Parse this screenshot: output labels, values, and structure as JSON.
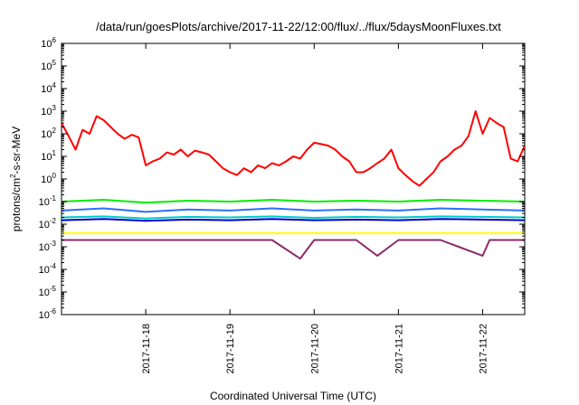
{
  "chart_data": {
    "type": "line",
    "title": "/data/run/goesPlots/archive/2017-11-22/12:00/flux/../flux/5daysMoonFluxes.txt",
    "xlabel": "Coordinated Universal Time (UTC)",
    "ylabel": {
      "base": "protons/cm",
      "sup": "2",
      "rest": "-s-sr-MeV"
    },
    "yscale": "log",
    "ylim": [
      1e-06,
      1000000.0
    ],
    "xlim": [
      "2017-11-17T00:00",
      "2017-11-22T12:00"
    ],
    "y_ticks": [
      {
        "base": "10",
        "exp": "-6",
        "value": 1e-06
      },
      {
        "base": "10",
        "exp": "-5",
        "value": 1e-05
      },
      {
        "base": "10",
        "exp": "-4",
        "value": 0.0001
      },
      {
        "base": "10",
        "exp": "-3",
        "value": 0.001
      },
      {
        "base": "10",
        "exp": "-2",
        "value": 0.01
      },
      {
        "base": "10",
        "exp": "-1",
        "value": 0.1
      },
      {
        "base": "10",
        "exp": "0",
        "value": 1
      },
      {
        "base": "10",
        "exp": "1",
        "value": 10
      },
      {
        "base": "10",
        "exp": "2",
        "value": 100
      },
      {
        "base": "10",
        "exp": "3",
        "value": 1000
      },
      {
        "base": "10",
        "exp": "4",
        "value": 10000
      },
      {
        "base": "10",
        "exp": "5",
        "value": 100000
      },
      {
        "base": "10",
        "exp": "6",
        "value": 1000000
      }
    ],
    "x_ticks": [
      "2017-11-18",
      "2017-11-19",
      "2017-11-20",
      "2017-11-21",
      "2017-11-22"
    ],
    "grid": false,
    "legend": "none",
    "series": [
      {
        "color": "#ff0000",
        "points": [
          [
            "2017-11-17T00:00",
            300
          ],
          [
            "2017-11-17T02:00",
            80
          ],
          [
            "2017-11-17T04:00",
            20
          ],
          [
            "2017-11-17T06:00",
            150
          ],
          [
            "2017-11-17T08:00",
            100
          ],
          [
            "2017-11-17T10:00",
            600
          ],
          [
            "2017-11-17T12:00",
            400
          ],
          [
            "2017-11-17T14:00",
            200
          ],
          [
            "2017-11-17T16:00",
            100
          ],
          [
            "2017-11-17T18:00",
            60
          ],
          [
            "2017-11-17T20:00",
            90
          ],
          [
            "2017-11-17T22:00",
            70
          ],
          [
            "2017-11-18T00:00",
            4
          ],
          [
            "2017-11-18T02:00",
            6
          ],
          [
            "2017-11-18T04:00",
            8
          ],
          [
            "2017-11-18T06:00",
            15
          ],
          [
            "2017-11-18T08:00",
            12
          ],
          [
            "2017-11-18T10:00",
            20
          ],
          [
            "2017-11-18T12:00",
            10
          ],
          [
            "2017-11-18T14:00",
            18
          ],
          [
            "2017-11-18T16:00",
            15
          ],
          [
            "2017-11-18T18:00",
            12
          ],
          [
            "2017-11-18T20:00",
            6
          ],
          [
            "2017-11-18T22:00",
            3
          ],
          [
            "2017-11-19T00:00",
            2
          ],
          [
            "2017-11-19T02:00",
            1.5
          ],
          [
            "2017-11-19T04:00",
            3
          ],
          [
            "2017-11-19T06:00",
            2
          ],
          [
            "2017-11-19T08:00",
            4
          ],
          [
            "2017-11-19T10:00",
            3
          ],
          [
            "2017-11-19T12:00",
            5
          ],
          [
            "2017-11-19T14:00",
            4
          ],
          [
            "2017-11-19T16:00",
            6
          ],
          [
            "2017-11-19T18:00",
            10
          ],
          [
            "2017-11-19T20:00",
            8
          ],
          [
            "2017-11-19T22:00",
            20
          ],
          [
            "2017-11-20T00:00",
            40
          ],
          [
            "2017-11-20T02:00",
            35
          ],
          [
            "2017-11-20T04:00",
            30
          ],
          [
            "2017-11-20T06:00",
            20
          ],
          [
            "2017-11-20T08:00",
            10
          ],
          [
            "2017-11-20T10:00",
            6
          ],
          [
            "2017-11-20T12:00",
            2
          ],
          [
            "2017-11-20T14:00",
            2
          ],
          [
            "2017-11-20T16:00",
            3
          ],
          [
            "2017-11-20T18:00",
            5
          ],
          [
            "2017-11-20T20:00",
            8
          ],
          [
            "2017-11-20T22:00",
            20
          ],
          [
            "2017-11-21T00:00",
            3
          ],
          [
            "2017-11-21T02:00",
            1.5
          ],
          [
            "2017-11-21T04:00",
            0.8
          ],
          [
            "2017-11-21T06:00",
            0.5
          ],
          [
            "2017-11-21T08:00",
            1
          ],
          [
            "2017-11-21T10:00",
            2
          ],
          [
            "2017-11-21T12:00",
            6
          ],
          [
            "2017-11-21T14:00",
            10
          ],
          [
            "2017-11-21T16:00",
            20
          ],
          [
            "2017-11-21T18:00",
            30
          ],
          [
            "2017-11-21T20:00",
            80
          ],
          [
            "2017-11-21T22:00",
            1000
          ],
          [
            "2017-11-22T00:00",
            100
          ],
          [
            "2017-11-22T02:00",
            500
          ],
          [
            "2017-11-22T04:00",
            300
          ],
          [
            "2017-11-22T06:00",
            200
          ],
          [
            "2017-11-22T08:00",
            8
          ],
          [
            "2017-11-22T10:00",
            6
          ],
          [
            "2017-11-22T12:00",
            30
          ]
        ]
      },
      {
        "color": "#00ee00",
        "points": [
          [
            "2017-11-17T00:00",
            0.1
          ],
          [
            "2017-11-17T12:00",
            0.12
          ],
          [
            "2017-11-18T00:00",
            0.09
          ],
          [
            "2017-11-18T12:00",
            0.11
          ],
          [
            "2017-11-19T00:00",
            0.1
          ],
          [
            "2017-11-19T12:00",
            0.12
          ],
          [
            "2017-11-20T00:00",
            0.1
          ],
          [
            "2017-11-20T12:00",
            0.11
          ],
          [
            "2017-11-21T00:00",
            0.1
          ],
          [
            "2017-11-21T12:00",
            0.12
          ],
          [
            "2017-11-22T00:00",
            0.11
          ],
          [
            "2017-11-22T12:00",
            0.1
          ]
        ]
      },
      {
        "color": "#2b6fff",
        "points": [
          [
            "2017-11-17T00:00",
            0.04
          ],
          [
            "2017-11-17T12:00",
            0.05
          ],
          [
            "2017-11-18T00:00",
            0.035
          ],
          [
            "2017-11-18T12:00",
            0.045
          ],
          [
            "2017-11-19T00:00",
            0.04
          ],
          [
            "2017-11-19T12:00",
            0.05
          ],
          [
            "2017-11-20T00:00",
            0.04
          ],
          [
            "2017-11-20T12:00",
            0.045
          ],
          [
            "2017-11-21T00:00",
            0.04
          ],
          [
            "2017-11-21T12:00",
            0.05
          ],
          [
            "2017-11-22T00:00",
            0.045
          ],
          [
            "2017-11-22T12:00",
            0.04
          ]
        ]
      },
      {
        "color": "#00cccc",
        "points": [
          [
            "2017-11-17T00:00",
            0.02
          ],
          [
            "2017-11-17T12:00",
            0.022
          ],
          [
            "2017-11-18T00:00",
            0.018
          ],
          [
            "2017-11-18T12:00",
            0.021
          ],
          [
            "2017-11-19T00:00",
            0.02
          ],
          [
            "2017-11-19T12:00",
            0.022
          ],
          [
            "2017-11-20T00:00",
            0.019
          ],
          [
            "2017-11-20T12:00",
            0.021
          ],
          [
            "2017-11-21T00:00",
            0.02
          ],
          [
            "2017-11-21T12:00",
            0.022
          ],
          [
            "2017-11-22T00:00",
            0.021
          ],
          [
            "2017-11-22T12:00",
            0.02
          ]
        ]
      },
      {
        "color": "#0000cc",
        "points": [
          [
            "2017-11-17T00:00",
            0.015
          ],
          [
            "2017-11-17T12:00",
            0.017
          ],
          [
            "2017-11-18T00:00",
            0.014
          ],
          [
            "2017-11-18T12:00",
            0.016
          ],
          [
            "2017-11-19T00:00",
            0.015
          ],
          [
            "2017-11-19T12:00",
            0.017
          ],
          [
            "2017-11-20T00:00",
            0.015
          ],
          [
            "2017-11-20T12:00",
            0.016
          ],
          [
            "2017-11-21T00:00",
            0.015
          ],
          [
            "2017-11-21T12:00",
            0.017
          ],
          [
            "2017-11-22T00:00",
            0.016
          ],
          [
            "2017-11-22T12:00",
            0.015
          ]
        ]
      },
      {
        "color": "#ffff00",
        "points": [
          [
            "2017-11-17T00:00",
            0.004
          ],
          [
            "2017-11-17T12:00",
            0.004
          ],
          [
            "2017-11-18T00:00",
            0.004
          ],
          [
            "2017-11-18T12:00",
            0.004
          ],
          [
            "2017-11-19T00:00",
            0.004
          ],
          [
            "2017-11-19T12:00",
            0.004
          ],
          [
            "2017-11-20T00:00",
            0.004
          ],
          [
            "2017-11-20T12:00",
            0.004
          ],
          [
            "2017-11-21T00:00",
            0.004
          ],
          [
            "2017-11-21T12:00",
            0.004
          ],
          [
            "2017-11-22T00:00",
            0.004
          ],
          [
            "2017-11-22T12:00",
            0.004
          ]
        ]
      },
      {
        "color": "#8b2a6b",
        "points": [
          [
            "2017-11-17T00:00",
            0.002
          ],
          [
            "2017-11-17T12:00",
            0.002
          ],
          [
            "2017-11-18T00:00",
            0.002
          ],
          [
            "2017-11-18T12:00",
            0.002
          ],
          [
            "2017-11-19T00:00",
            0.002
          ],
          [
            "2017-11-19T12:00",
            0.002
          ],
          [
            "2017-11-19T20:00",
            0.0003
          ],
          [
            "2017-11-20T00:00",
            0.002
          ],
          [
            "2017-11-20T12:00",
            0.002
          ],
          [
            "2017-11-20T18:00",
            0.0004
          ],
          [
            "2017-11-21T00:00",
            0.002
          ],
          [
            "2017-11-21T12:00",
            0.002
          ],
          [
            "2017-11-22T00:00",
            0.0004
          ],
          [
            "2017-11-22T02:00",
            0.002
          ],
          [
            "2017-11-22T12:00",
            0.002
          ]
        ]
      }
    ]
  }
}
